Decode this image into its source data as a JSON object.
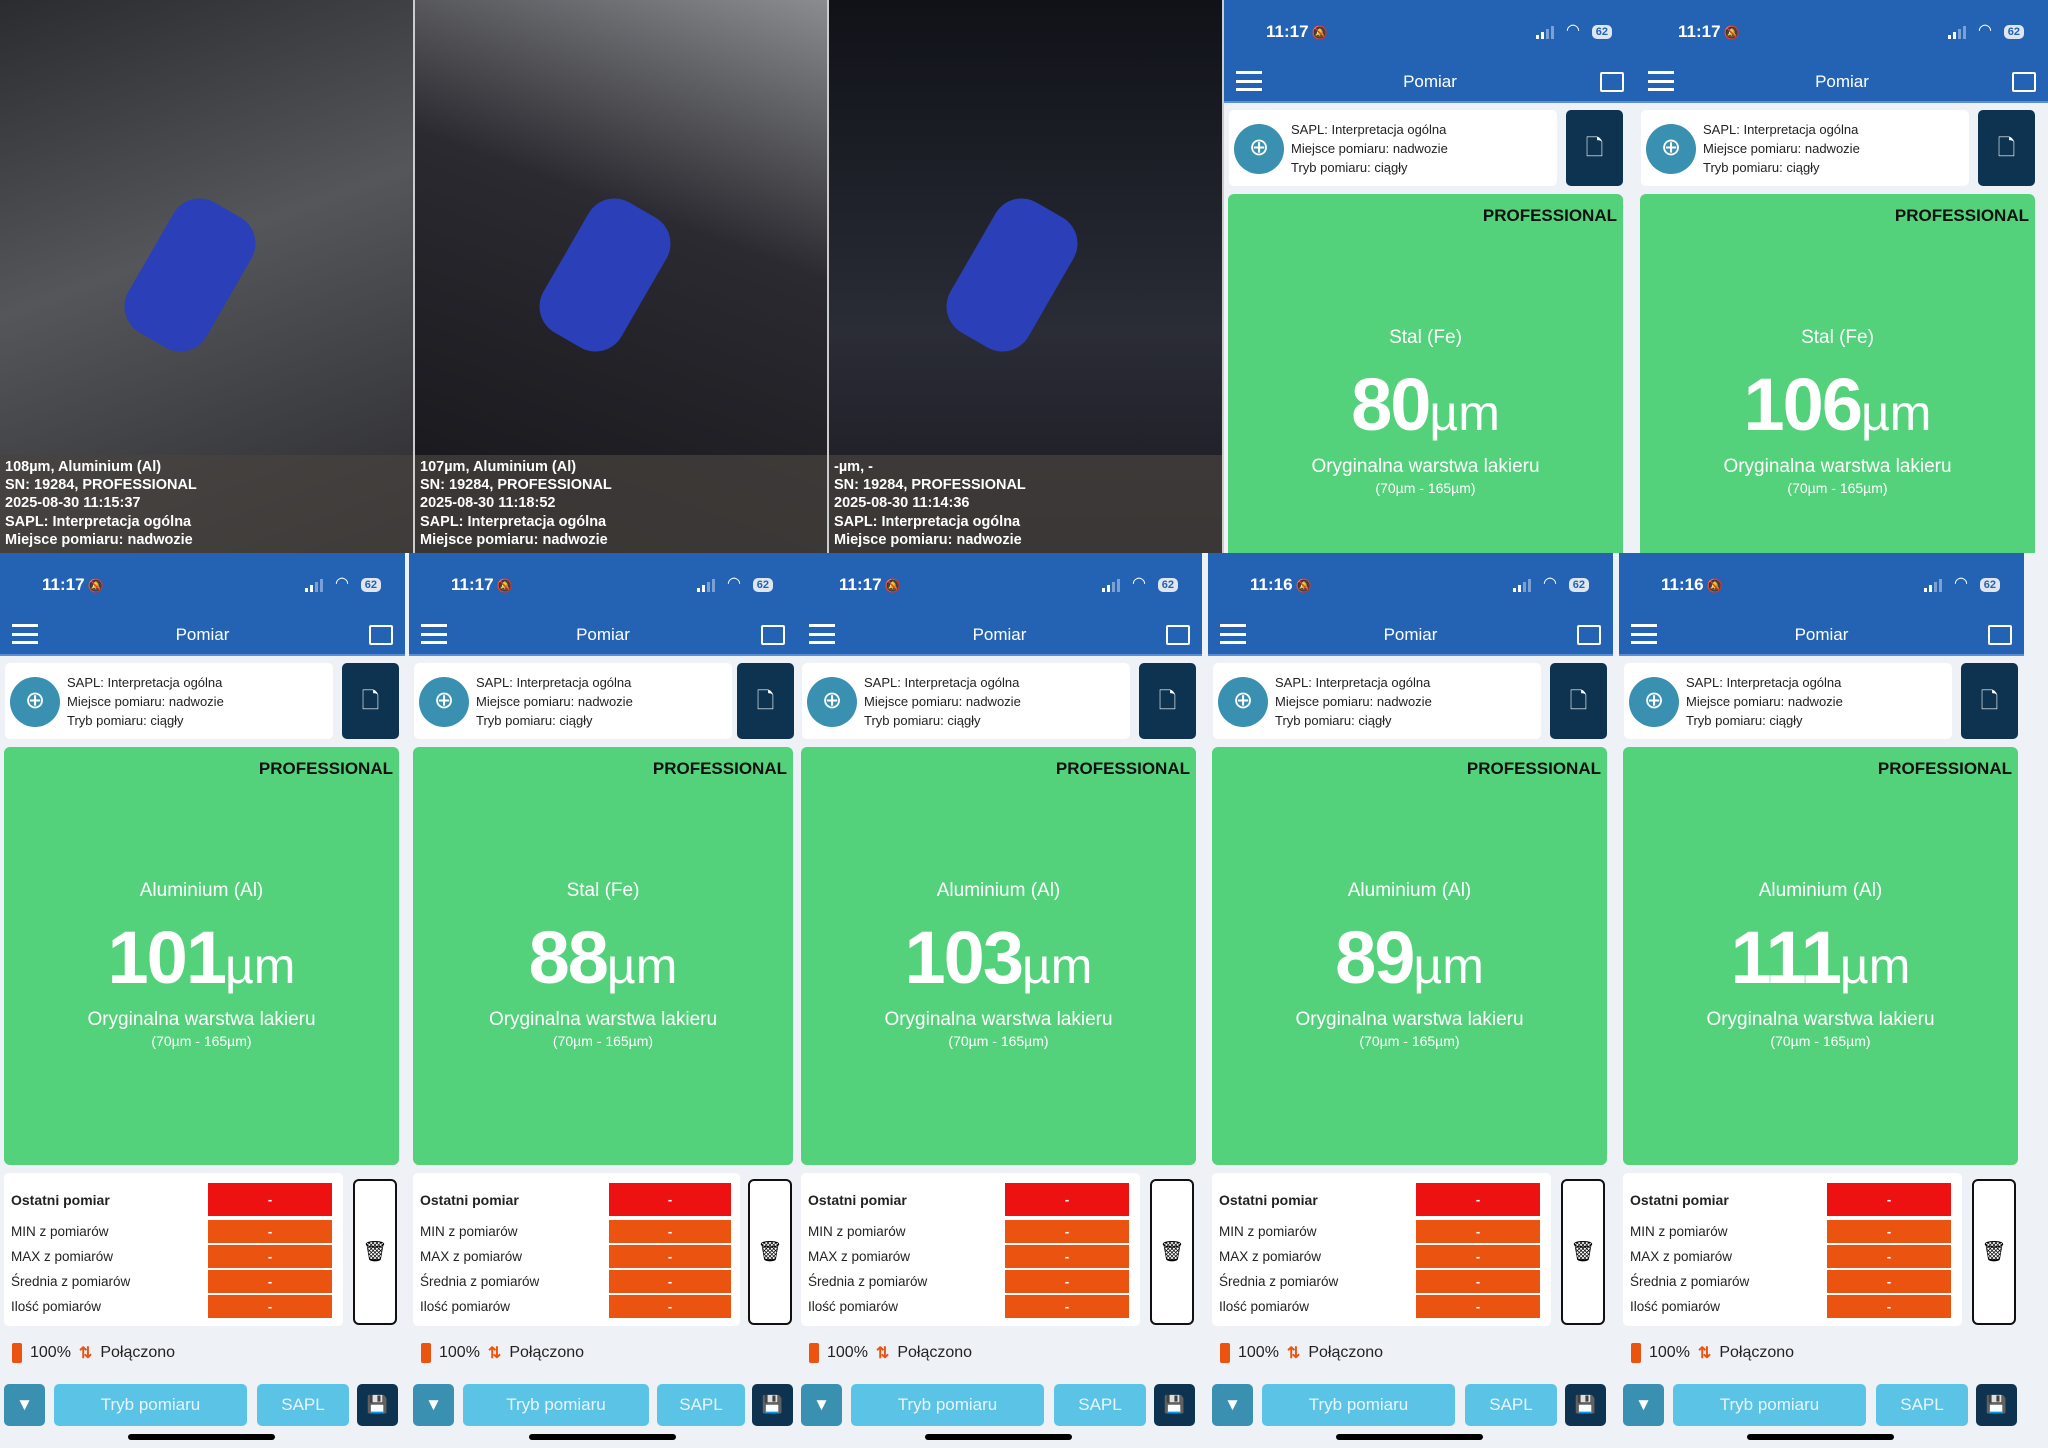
{
  "photos": [
    {
      "lines": [
        "108µm, Aluminium (Al)",
        "SN: 19284, PROFESSIONAL",
        "2025-08-30 11:15:37",
        "SAPL: Interpretacja ogólna",
        "Miejsce pomiaru: nadwozie"
      ]
    },
    {
      "lines": [
        "107µm, Aluminium (Al)",
        "SN: 19284, PROFESSIONAL",
        "2025-08-30 11:18:52",
        "SAPL: Interpretacja ogólna",
        "Miejsce pomiaru: nadwozie"
      ]
    },
    {
      "lines": [
        "-µm, -",
        "SN: 19284, PROFESSIONAL",
        "2025-08-30 11:14:36",
        "SAPL: Interpretacja ogólna",
        "Miejsce pomiaru: nadwozie"
      ]
    }
  ],
  "app": {
    "title": "Pomiar",
    "battery_level": "62",
    "info_lines": [
      "SAPL: Interpretacja ogólna",
      "Miejsce pomiaru: nadwozie",
      "Tryb pomiaru: ciągły"
    ],
    "badge": "PROFESSIONAL",
    "unit": "µm",
    "range": "(70µm - 165µm)",
    "stats": [
      {
        "label": "Ostatni pomiar",
        "value": "-"
      },
      {
        "label": "MIN z pomiarów",
        "value": "-"
      },
      {
        "label": "MAX z pomiarów",
        "value": "-"
      },
      {
        "label": "Średnia z pomiarów",
        "value": "-"
      },
      {
        "label": "Ilość pomiarów",
        "value": "-"
      }
    ],
    "device_battery": "100%",
    "connection": "Połączono",
    "mode_button": "Tryb pomiaru",
    "sapl_button": "SAPL",
    "colors": {
      "bar": "#2463b4",
      "green": "#53d27b",
      "red": "#ee1111",
      "orange": "#ea5310"
    }
  },
  "phones": [
    {
      "time": "11:17",
      "metal": "Stal (Fe)",
      "value": "80",
      "status": "Oryginalna warstwa lakieru"
    },
    {
      "time": "11:17",
      "metal": "Stal (Fe)",
      "value": "106",
      "status": "Oryginalna warstwa lakieru"
    },
    {
      "time": "11:17",
      "metal": "Aluminium (Al)",
      "value": "101",
      "status": "Oryginalna warstwa lakieru"
    },
    {
      "time": "11:17",
      "metal": "Stal (Fe)",
      "value": "88",
      "status": "Oryginalna warstwa lakieru"
    },
    {
      "time": "11:17",
      "metal": "Aluminium (Al)",
      "value": "103",
      "status": "Oryginalna warstwa lakieru"
    },
    {
      "time": "11:16",
      "metal": "Aluminium (Al)",
      "value": "89",
      "status": "Oryginalna warstwa lakieru"
    },
    {
      "time": "11:16",
      "metal": "Aluminium (Al)",
      "value": "111",
      "status": "Oryginalna warstwa lakieru"
    }
  ]
}
